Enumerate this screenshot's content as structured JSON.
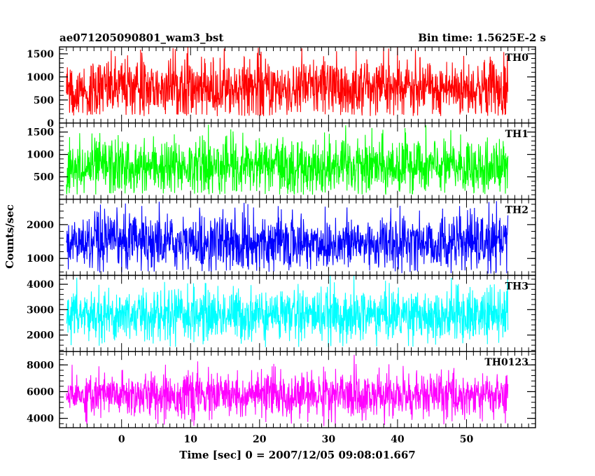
{
  "chart_data": {
    "type": "line",
    "title_left": "ae071205090801_wam3_bst",
    "title_right": "Bin time: 1.5625E-2 s",
    "xlabel": "Time [sec] 0 = 2007/12/05 09:08:01.667",
    "ylabel": "Counts/sec",
    "xlim": [
      -9,
      60
    ],
    "xticks": [
      0,
      10,
      20,
      30,
      40,
      50
    ],
    "data_x_range": [
      -8,
      56
    ],
    "grid": false,
    "panels": [
      {
        "name": "TH0",
        "color": "#ff0000",
        "ylim": [
          0,
          1650
        ],
        "yticks": [
          0,
          500,
          1000,
          1500
        ],
        "mean": 750,
        "spread": 330,
        "min": 150,
        "max": 1650
      },
      {
        "name": "TH1",
        "color": "#00ff00",
        "ylim": [
          0,
          1700
        ],
        "yticks": [
          500,
          1000,
          1500
        ],
        "mean": 720,
        "spread": 320,
        "min": 100,
        "max": 1700
      },
      {
        "name": "TH2",
        "color": "#0000ff",
        "ylim": [
          500,
          2750
        ],
        "yticks": [
          1000,
          2000
        ],
        "mean": 1450,
        "spread": 420,
        "min": 550,
        "max": 2750
      },
      {
        "name": "TH3",
        "color": "#00ffff",
        "ylim": [
          1350,
          4350
        ],
        "yticks": [
          2000,
          3000,
          4000
        ],
        "mean": 2800,
        "spread": 520,
        "min": 1500,
        "max": 4350
      },
      {
        "name": "TH0123",
        "color": "#ff00ff",
        "ylim": [
          3300,
          9000
        ],
        "yticks": [
          4000,
          6000,
          8000
        ],
        "mean": 5700,
        "spread": 850,
        "min": 3400,
        "max": 8900
      }
    ]
  }
}
